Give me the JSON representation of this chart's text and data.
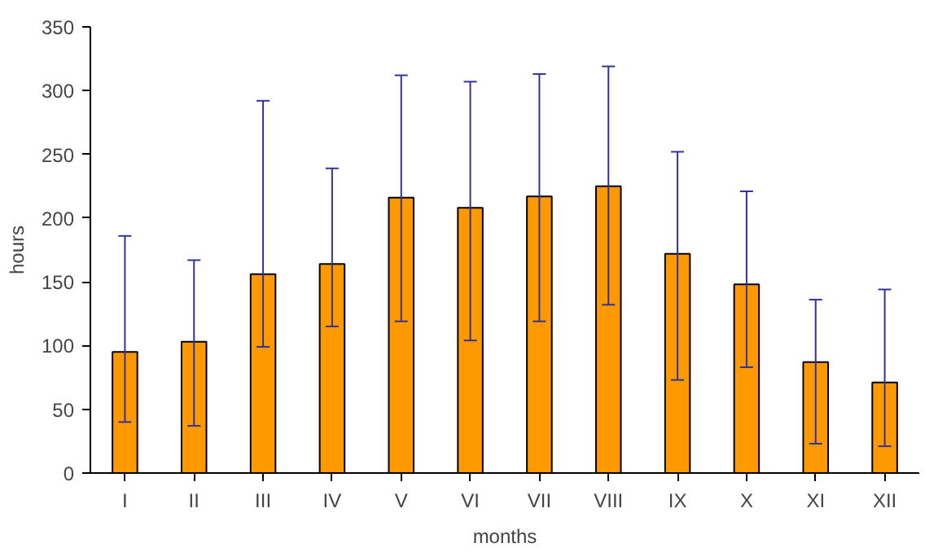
{
  "chart_data": {
    "type": "bar",
    "xlabel": "months",
    "ylabel": "hours",
    "categories": [
      "I",
      "II",
      "III",
      "IV",
      "V",
      "VI",
      "VII",
      "VIII",
      "IX",
      "X",
      "XI",
      "XII"
    ],
    "values": [
      95,
      103,
      156,
      164,
      216,
      208,
      217,
      225,
      172,
      148,
      87,
      71
    ],
    "errors": [
      [
        40,
        186
      ],
      [
        37,
        167
      ],
      [
        99,
        292
      ],
      [
        115,
        239
      ],
      [
        119,
        312
      ],
      [
        104,
        307
      ],
      [
        119,
        313
      ],
      [
        132,
        319
      ],
      [
        73,
        252
      ],
      [
        83,
        221
      ],
      [
        23,
        136
      ],
      [
        21,
        144
      ]
    ],
    "color": "#ff9900",
    "ylim": [
      0,
      350
    ],
    "yticks": [
      0,
      50,
      100,
      150,
      200,
      250,
      300,
      350
    ],
    "grid": false
  }
}
